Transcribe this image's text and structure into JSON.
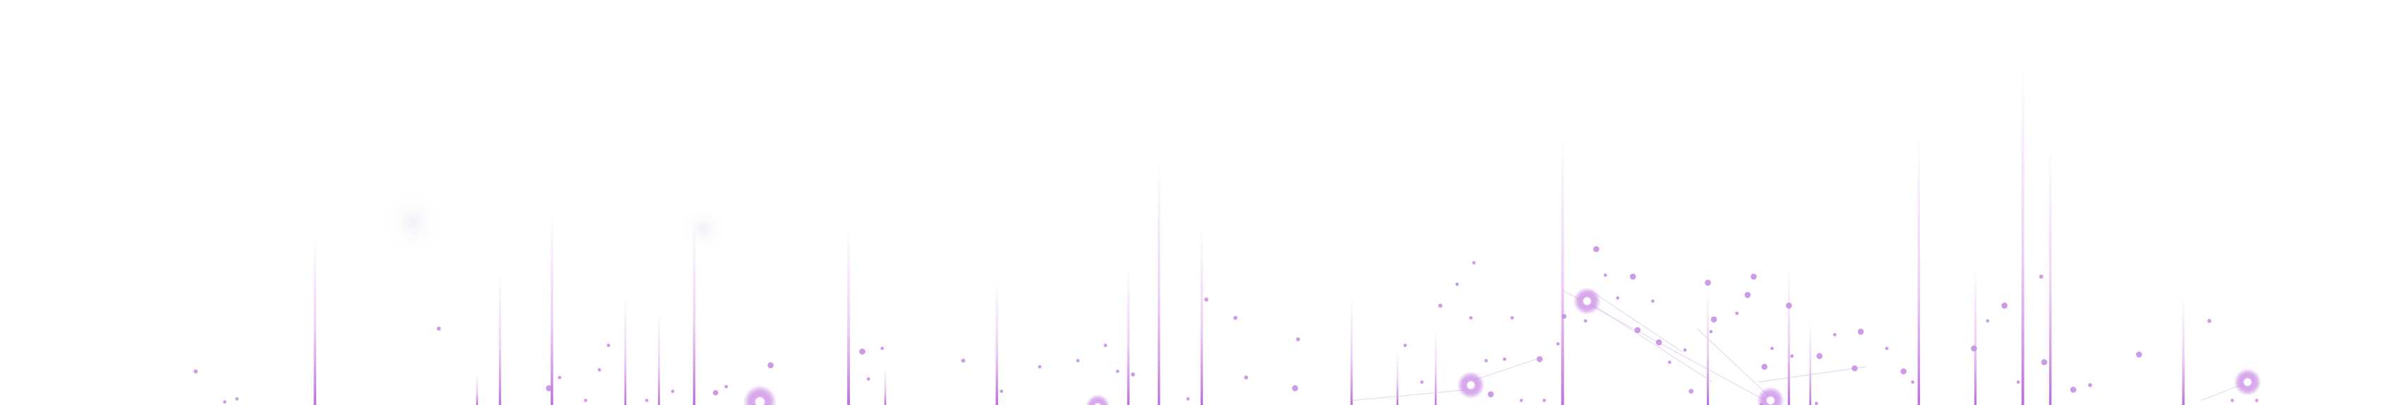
{
  "scene": {
    "background": "#ffffff",
    "line_color": "#c77be0",
    "dot_color": "#c48ae0",
    "glow_color": "#b45fd6",
    "description_visible_text": ""
  }
}
